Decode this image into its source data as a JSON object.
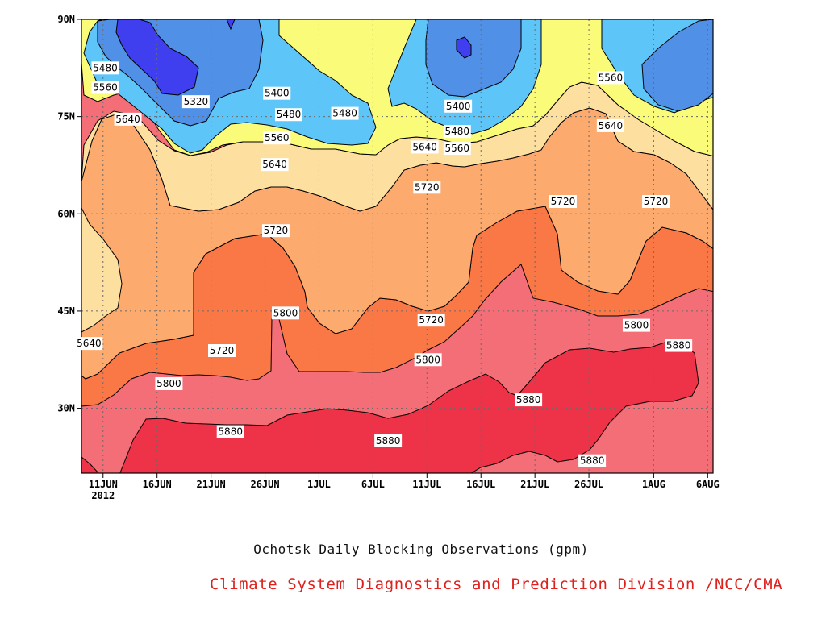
{
  "chart_data": {
    "type": "heatmap",
    "variant": "filled-contour (time-latitude Hovmoller)",
    "title": "Ochotsk Daily Blocking Observations (gpm)",
    "subtitle": "Climate System Diagnostics and Prediction Division /NCC/CMA",
    "x_axis": {
      "ticks": [
        "11JUN",
        "16JUN",
        "21JUN",
        "26JUN",
        "1JUL",
        "6JUL",
        "11JUL",
        "16JUL",
        "21JUL",
        "26JUL",
        "1AUG",
        "6AUG"
      ],
      "tick_days": [
        11,
        16,
        21,
        26,
        31,
        36,
        41,
        46,
        51,
        56,
        62,
        67
      ],
      "sub_label": "2012",
      "range_days": [
        9,
        67.5
      ]
    },
    "y_axis": {
      "ticks": [
        "30N",
        "45N",
        "60N",
        "75N",
        "90N"
      ],
      "tick_values": [
        30,
        45,
        60,
        75,
        90
      ],
      "range": [
        20,
        90
      ]
    },
    "grid": true,
    "contour_levels": [
      5320,
      5400,
      5480,
      5560,
      5640,
      5720,
      5800,
      5880
    ],
    "fill_colors": [
      "#3f3ff0",
      "#5090e6",
      "#5ec5f8",
      "#fbfb7a",
      "#fde0a0",
      "#fcaa6e",
      "#fa7746",
      "#f46e78",
      "#ee3248"
    ],
    "contour_labels": [
      {
        "text": "5480",
        "day": 11.2,
        "lat": 82.5
      },
      {
        "text": "5560",
        "day": 11.2,
        "lat": 79.5
      },
      {
        "text": "5640",
        "day": 13.3,
        "lat": 74.6
      },
      {
        "text": "5320",
        "day": 19.6,
        "lat": 77.3
      },
      {
        "text": "5400",
        "day": 27.1,
        "lat": 78.6
      },
      {
        "text": "5480",
        "day": 28.2,
        "lat": 75.3
      },
      {
        "text": "5560",
        "day": 27.1,
        "lat": 71.7
      },
      {
        "text": "5640",
        "day": 26.9,
        "lat": 67.6
      },
      {
        "text": "5720",
        "day": 27.0,
        "lat": 57.4
      },
      {
        "text": "5800",
        "day": 27.9,
        "lat": 44.7
      },
      {
        "text": "5720",
        "day": 22.0,
        "lat": 38.9
      },
      {
        "text": "5800",
        "day": 17.1,
        "lat": 33.8
      },
      {
        "text": "5880",
        "day": 22.8,
        "lat": 26.4
      },
      {
        "text": "5640",
        "day": 9.7,
        "lat": 40.0
      },
      {
        "text": "5480",
        "day": 33.4,
        "lat": 75.5
      },
      {
        "text": "5400",
        "day": 43.9,
        "lat": 76.6
      },
      {
        "text": "5480",
        "day": 43.8,
        "lat": 72.7
      },
      {
        "text": "5560",
        "day": 43.8,
        "lat": 70.1
      },
      {
        "text": "5640",
        "day": 40.8,
        "lat": 70.3
      },
      {
        "text": "5720",
        "day": 41.0,
        "lat": 64.1
      },
      {
        "text": "5720",
        "day": 41.4,
        "lat": 43.6
      },
      {
        "text": "5800",
        "day": 41.1,
        "lat": 37.5
      },
      {
        "text": "5880",
        "day": 37.4,
        "lat": 25.0
      },
      {
        "text": "5560",
        "day": 58.0,
        "lat": 81.0
      },
      {
        "text": "5640",
        "day": 58.0,
        "lat": 73.6
      },
      {
        "text": "5720",
        "day": 53.6,
        "lat": 61.9
      },
      {
        "text": "5720",
        "day": 62.2,
        "lat": 61.9
      },
      {
        "text": "5800",
        "day": 60.4,
        "lat": 42.8
      },
      {
        "text": "5880",
        "day": 64.3,
        "lat": 39.7
      },
      {
        "text": "5880",
        "day": 50.4,
        "lat": 31.3
      },
      {
        "text": "5880",
        "day": 56.3,
        "lat": 21.9
      }
    ]
  }
}
